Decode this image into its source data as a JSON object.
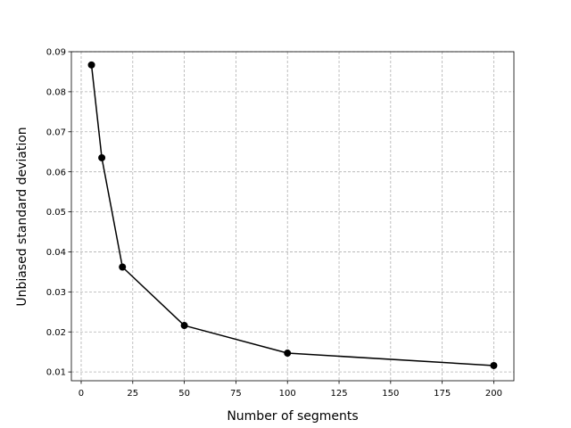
{
  "chart_data": {
    "type": "line",
    "title": "",
    "xlabel": "Number of segments",
    "ylabel": "Unbiased standard deviation",
    "x": [
      5,
      10,
      20,
      50,
      100,
      200
    ],
    "series": [
      {
        "values": [
          0.0867,
          0.0635,
          0.0362,
          0.0216,
          0.0147,
          0.0116
        ],
        "color": "#000000",
        "marker": "circle"
      }
    ],
    "xlim": [
      -4.75,
      209.75
    ],
    "ylim": [
      0.0078,
      0.09
    ],
    "xticks": [
      0,
      25,
      50,
      75,
      100,
      125,
      150,
      175,
      200
    ],
    "xtick_labels": [
      "0",
      "25",
      "50",
      "75",
      "100",
      "125",
      "150",
      "175",
      "200"
    ],
    "yticks": [
      0.01,
      0.02,
      0.03,
      0.04,
      0.05,
      0.06,
      0.07,
      0.08,
      0.09
    ],
    "ytick_labels": [
      "0.01",
      "0.02",
      "0.03",
      "0.04",
      "0.05",
      "0.06",
      "0.07",
      "0.08",
      "0.09"
    ],
    "grid": true,
    "grid_color": "#b0b0b0",
    "legend": false
  }
}
